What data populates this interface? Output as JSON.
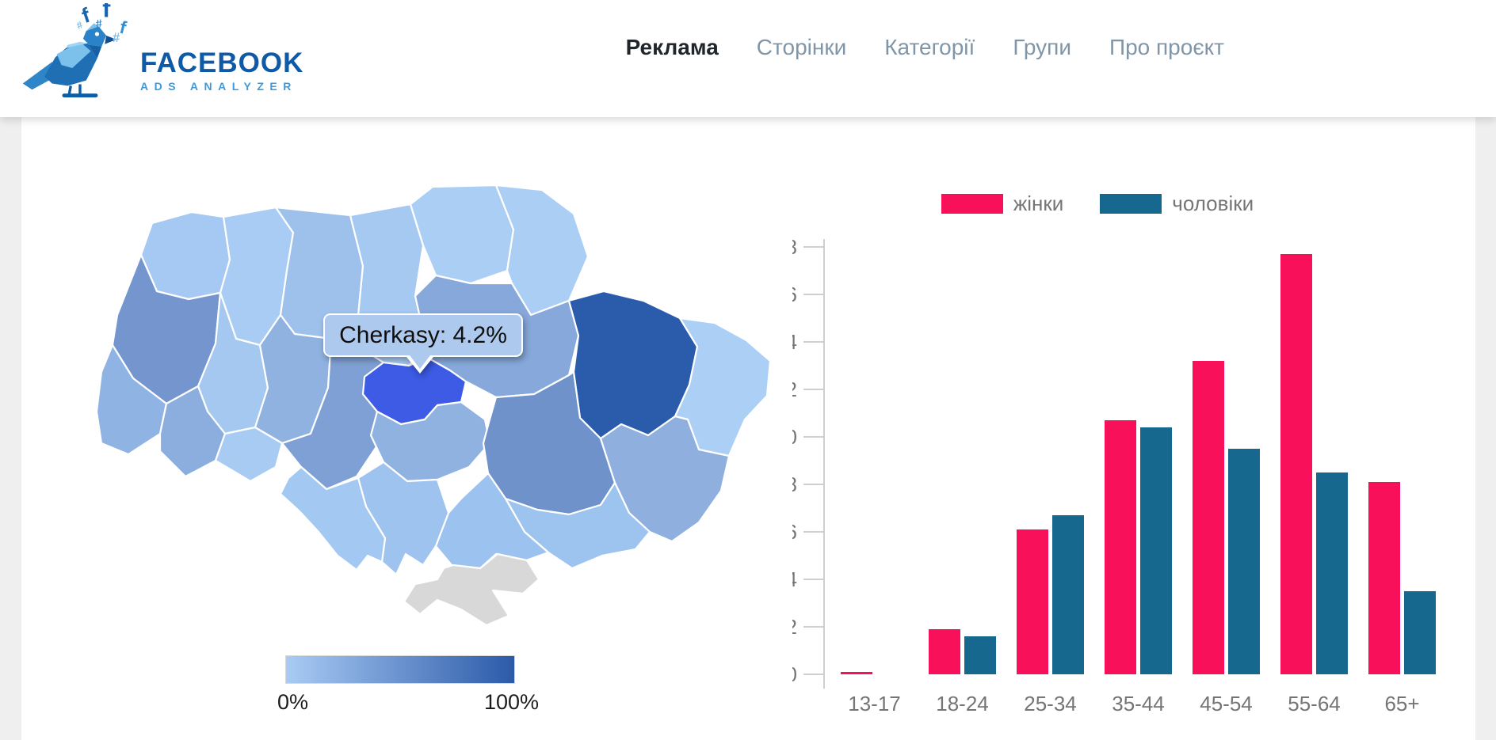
{
  "header": {
    "logo": {
      "title": "FACEBOOK",
      "subtitle": "ADS ANALYZER"
    },
    "nav": [
      {
        "label": "Реклама",
        "active": true
      },
      {
        "label": "Сторінки",
        "active": false
      },
      {
        "label": "Категорії",
        "active": false
      },
      {
        "label": "Групи",
        "active": false
      },
      {
        "label": "Про проєкт",
        "active": false
      }
    ]
  },
  "map": {
    "tooltip_text": "Cherkasy: 4.2%",
    "selected_region": {
      "id": "cherkasy",
      "name": "Cherkasy",
      "value_pct": 4.2,
      "color": "#3D5BE5"
    },
    "legend": {
      "min_label": "0%",
      "max_label": "100%",
      "gradient_start": "#A9CBF4",
      "gradient_end": "#2B5AA8"
    },
    "no_data_color": "#D8D8D8",
    "border_color": "#FFFFFF",
    "regions": [
      {
        "id": "volyn",
        "color": "#A6C9F3"
      },
      {
        "id": "rivne",
        "color": "#A9CCF4"
      },
      {
        "id": "zhytomyr",
        "color": "#9EC1EC"
      },
      {
        "id": "kyiv",
        "color": "#A6C9F2"
      },
      {
        "id": "chernihiv",
        "color": "#ABCEF5"
      },
      {
        "id": "sumy",
        "color": "#ABCEF5"
      },
      {
        "id": "lviv",
        "color": "#7495CD"
      },
      {
        "id": "ternopil",
        "color": "#A5C8F1"
      },
      {
        "id": "khmelnytskyi",
        "color": "#8FB2E0"
      },
      {
        "id": "vinnytsia",
        "color": "#7FA0D4"
      },
      {
        "id": "zakarpattia",
        "color": "#8FB3E3"
      },
      {
        "id": "ivano-frankivsk",
        "color": "#8CAEDE"
      },
      {
        "id": "chernivtsi",
        "color": "#A8CBF3"
      },
      {
        "id": "cherkasy",
        "color": "#3D5BE5"
      },
      {
        "id": "kirovohrad",
        "color": "#8FB2E0"
      },
      {
        "id": "poltava",
        "color": "#86A8DA"
      },
      {
        "id": "kharkiv",
        "color": "#2B5BAB"
      },
      {
        "id": "luhansk",
        "color": "#ACCFF6"
      },
      {
        "id": "dnipropetrovsk",
        "color": "#6F92CB"
      },
      {
        "id": "donetsk",
        "color": "#8FB0DF"
      },
      {
        "id": "zaporizhzhia",
        "color": "#9DC3EF"
      },
      {
        "id": "kherson",
        "color": "#9CC2EF"
      },
      {
        "id": "mykolaiv",
        "color": "#9EC3EF"
      },
      {
        "id": "odesa",
        "color": "#A3C8F2"
      },
      {
        "id": "crimea",
        "color": "#D8D8D8"
      }
    ]
  },
  "chart_data": {
    "type": "bar",
    "title": "",
    "xlabel": "",
    "ylabel": "",
    "categories": [
      "13-17",
      "18-24",
      "25-34",
      "35-44",
      "45-54",
      "55-64",
      "65+"
    ],
    "series": [
      {
        "name": "жінки",
        "color": "#F8115A",
        "values": [
          0.1,
          1.9,
          6.1,
          10.7,
          13.2,
          17.7,
          8.1
        ]
      },
      {
        "name": "чоловіки",
        "color": "#16688E",
        "values": [
          0,
          1.6,
          6.7,
          10.4,
          9.5,
          8.5,
          3.5
        ]
      }
    ],
    "ylim": [
      0,
      18
    ],
    "ytick_step": 2,
    "grid": false,
    "legend_position": "top",
    "axis_color": "#CFCFCF",
    "label_color": "#757575"
  }
}
